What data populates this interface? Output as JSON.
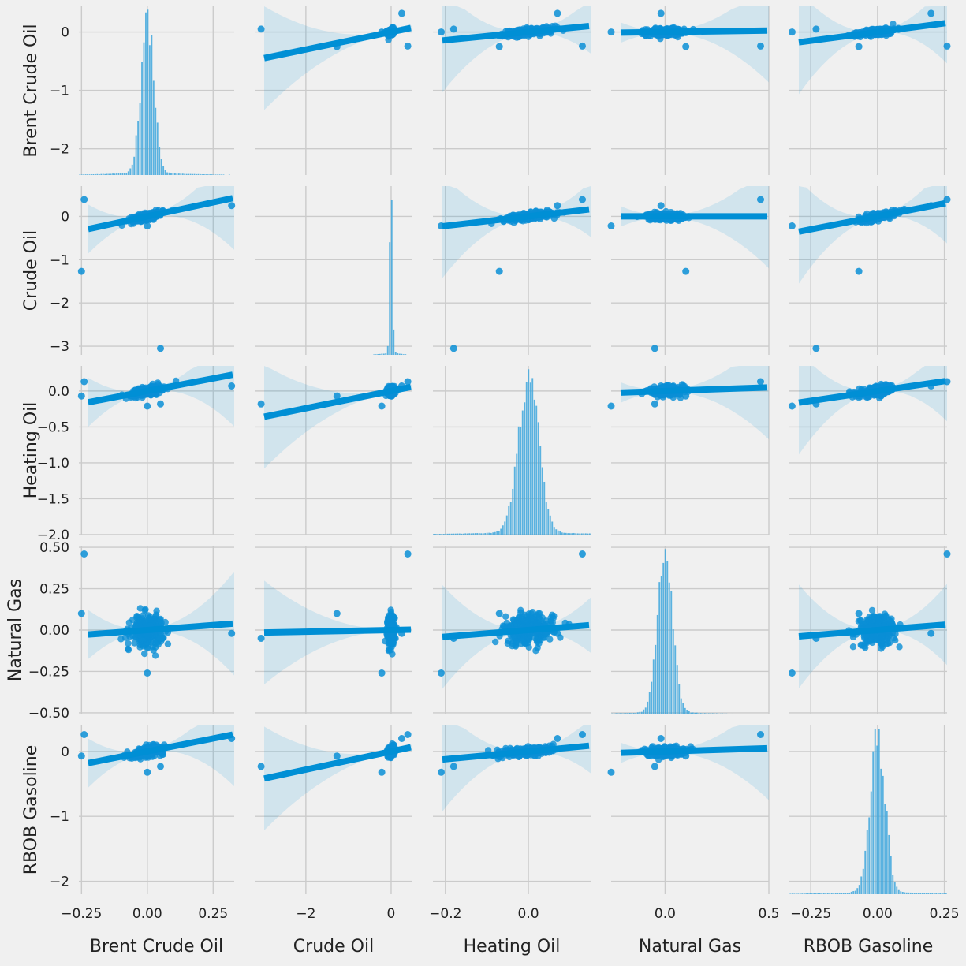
{
  "chart_data": {
    "type": "scatter",
    "kind": "pairplot",
    "variables": [
      "Brent Crude Oil",
      "Crude Oil",
      "Heating Oil",
      "Natural Gas",
      "RBOB Gasoline"
    ],
    "diagonal": "histogram",
    "off_diagonal": "scatter with linear regression line and confidence band",
    "grid": true,
    "colors": {
      "point": "#0a8fd6",
      "line": "#008fd5",
      "band": "#008fd5",
      "hist": "#3fa7dd",
      "background": "#f0f0f0",
      "grid": "#cbcbcb"
    },
    "axes": {
      "Brent Crude Oil": {
        "range": [
          -0.26,
          0.33
        ],
        "ticks": [
          -0.25,
          0.0,
          0.25
        ],
        "tick_labels": [
          "−0.25",
          "0.00",
          "0.25"
        ],
        "y_range": [
          -2.45,
          0.44
        ],
        "y_ticks": [
          -2,
          -1,
          0
        ],
        "y_tick_labels": [
          "−2",
          "−1",
          "0"
        ]
      },
      "Crude Oil": {
        "range": [
          -3.2,
          0.5
        ],
        "ticks": [
          -2,
          0
        ],
        "tick_labels": [
          "−2",
          "0"
        ],
        "y_range": [
          -3.2,
          0.7
        ],
        "y_ticks": [
          -3,
          -2,
          -1,
          0
        ],
        "y_tick_labels": [
          "−3",
          "−2",
          "−1",
          "0"
        ]
      },
      "Heating Oil": {
        "range": [
          -0.23,
          0.15
        ],
        "ticks": [
          -0.2,
          0.0
        ],
        "tick_labels": [
          "−0.2",
          "0.0"
        ],
        "y_range": [
          -2.0,
          0.35
        ],
        "y_ticks": [
          -2.0,
          -1.5,
          -1.0,
          -0.5,
          0.0
        ],
        "y_tick_labels": [
          "−2.0",
          "−1.5",
          "−1.0",
          "−0.5",
          "0.0"
        ]
      },
      "Natural Gas": {
        "range": [
          -0.26,
          0.5
        ],
        "ticks": [
          0.0,
          0.5
        ],
        "tick_labels": [
          "0.0",
          "0.5"
        ],
        "y_range": [
          -0.51,
          0.51
        ],
        "y_ticks": [
          -0.5,
          -0.25,
          0.0,
          0.25,
          0.5
        ],
        "y_tick_labels": [
          "−0.50",
          "−0.25",
          "0.00",
          "0.25",
          "0.50"
        ]
      },
      "RBOB Gasoline": {
        "range": [
          -0.33,
          0.26
        ],
        "ticks": [
          -0.25,
          0.0,
          0.25
        ],
        "tick_labels": [
          "−0.25",
          "0.00",
          "0.25"
        ],
        "y_range": [
          -2.2,
          0.4
        ],
        "y_ticks": [
          -2,
          -1,
          0
        ],
        "y_tick_labels": [
          "−2",
          "−1",
          "0"
        ]
      }
    },
    "regressions": [
      {
        "x": "Crude Oil",
        "y": "Brent Crude Oil",
        "slope": 0.15,
        "intercept": 0.0
      },
      {
        "x": "Heating Oil",
        "y": "Brent Crude Oil",
        "slope": 0.7,
        "intercept": 0.0
      },
      {
        "x": "Natural Gas",
        "y": "Brent Crude Oil",
        "slope": 0.05,
        "intercept": 0.0
      },
      {
        "x": "RBOB Gasoline",
        "y": "Brent Crude Oil",
        "slope": 0.6,
        "intercept": 0.0
      },
      {
        "x": "Brent Crude Oil",
        "y": "Crude Oil",
        "slope": 1.3,
        "intercept": 0.0
      },
      {
        "x": "Heating Oil",
        "y": "Crude Oil",
        "slope": 1.1,
        "intercept": 0.0
      },
      {
        "x": "Natural Gas",
        "y": "Crude Oil",
        "slope": 0.0,
        "intercept": 0.0
      },
      {
        "x": "RBOB Gasoline",
        "y": "Crude Oil",
        "slope": 1.2,
        "intercept": 0.0
      },
      {
        "x": "Brent Crude Oil",
        "y": "Heating Oil",
        "slope": 0.7,
        "intercept": 0.0
      },
      {
        "x": "Crude Oil",
        "y": "Heating Oil",
        "slope": 0.12,
        "intercept": 0.0
      },
      {
        "x": "Natural Gas",
        "y": "Heating Oil",
        "slope": 0.1,
        "intercept": 0.0
      },
      {
        "x": "RBOB Gasoline",
        "y": "Heating Oil",
        "slope": 0.55,
        "intercept": 0.0
      },
      {
        "x": "Brent Crude Oil",
        "y": "Natural Gas",
        "slope": 0.12,
        "intercept": 0.0
      },
      {
        "x": "Crude Oil",
        "y": "Natural Gas",
        "slope": 0.005,
        "intercept": 0.0
      },
      {
        "x": "Heating Oil",
        "y": "Natural Gas",
        "slope": 0.2,
        "intercept": 0.0
      },
      {
        "x": "RBOB Gasoline",
        "y": "Natural Gas",
        "slope": 0.13,
        "intercept": 0.0
      },
      {
        "x": "Brent Crude Oil",
        "y": "RBOB Gasoline",
        "slope": 0.8,
        "intercept": 0.0
      },
      {
        "x": "Crude Oil",
        "y": "RBOB Gasoline",
        "slope": 0.14,
        "intercept": 0.0
      },
      {
        "x": "Heating Oil",
        "y": "RBOB Gasoline",
        "slope": 0.6,
        "intercept": 0.0
      },
      {
        "x": "Natural Gas",
        "y": "RBOB Gasoline",
        "slope": 0.1,
        "intercept": 0.0
      }
    ],
    "outliers": {
      "Brent Crude Oil": [
        0.32,
        -0.25,
        0.05,
        -0.24,
        0.0
      ],
      "Crude Oil": [
        0.25,
        -1.27,
        -3.05,
        0.39,
        -0.22
      ],
      "Heating Oil": [
        0.07,
        -0.07,
        -0.18,
        0.13,
        -0.21
      ],
      "Natural Gas": [
        -0.02,
        0.1,
        -0.05,
        0.46,
        -0.26
      ],
      "RBOB Gasoline": [
        0.2,
        -0.07,
        -0.23,
        0.26,
        -0.32
      ]
    }
  }
}
